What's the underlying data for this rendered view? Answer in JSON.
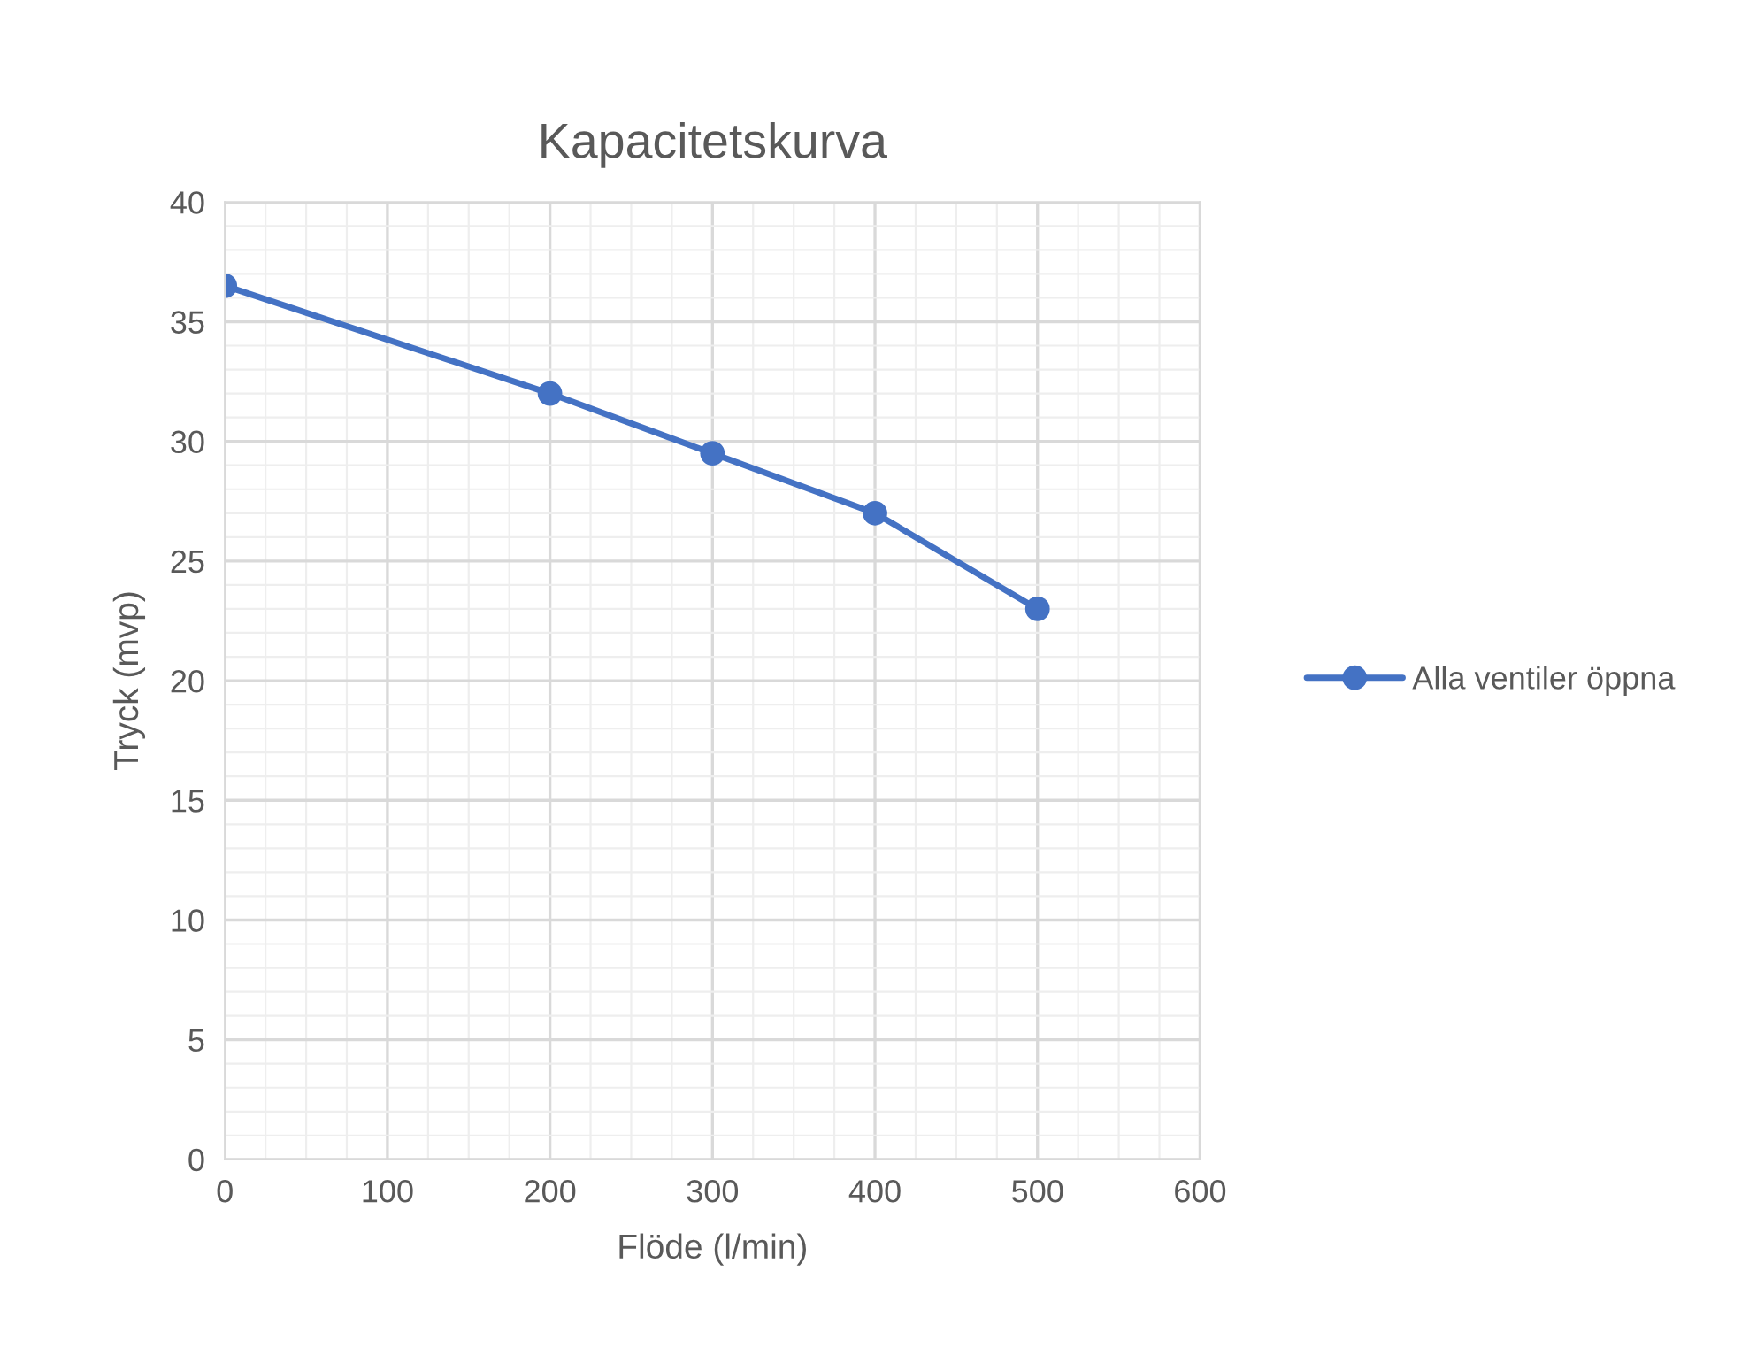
{
  "chart_data": {
    "type": "line",
    "title": "Kapacitetskurva",
    "xlabel": "Flöde (l/min)",
    "ylabel": "Tryck (mvp)",
    "x": [
      0,
      200,
      300,
      400,
      500
    ],
    "series": [
      {
        "name": "Alla ventiler öppna",
        "color": "#4472c4",
        "values": [
          36.5,
          32,
          29.5,
          27,
          23
        ]
      }
    ],
    "xlim": [
      0,
      600
    ],
    "xticks": [
      0,
      100,
      200,
      300,
      400,
      500,
      600
    ],
    "ylim": [
      0,
      40
    ],
    "yticks": [
      0,
      5,
      10,
      15,
      20,
      25,
      30,
      35,
      40
    ],
    "grid": true,
    "legend": "right",
    "marker": "circle",
    "line_style": "solid"
  }
}
